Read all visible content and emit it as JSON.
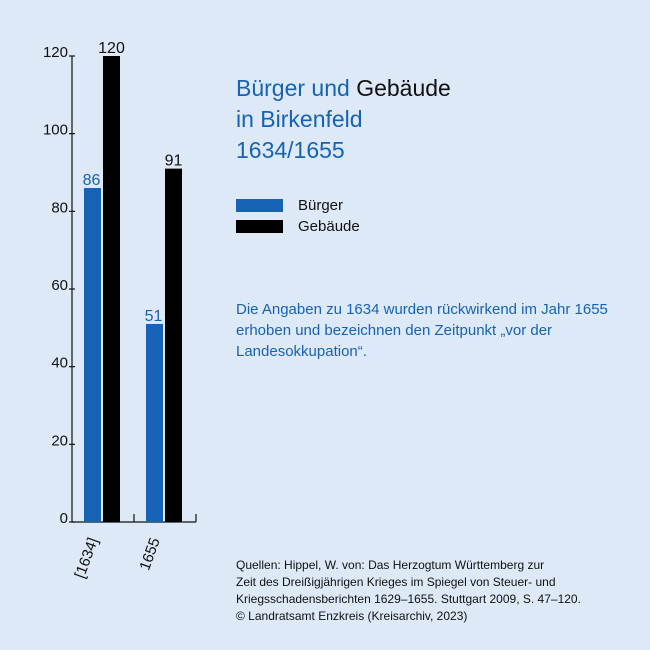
{
  "chart_data": {
    "type": "bar",
    "title": "Bürger und Gebäude in Birkenfeld 1634/1655",
    "categories": [
      "[1634]",
      "1655"
    ],
    "series": [
      {
        "name": "Bürger",
        "values": [
          86,
          51
        ],
        "color": "#1862b3"
      },
      {
        "name": "Gebäude",
        "values": [
          120,
          91
        ],
        "color": "#000000"
      }
    ],
    "ylim": [
      0,
      120
    ],
    "yticks": [
      0,
      20,
      40,
      60,
      80,
      100,
      120
    ],
    "xlabel": "",
    "ylabel": "",
    "grid": false,
    "legend": "right"
  },
  "title": {
    "part1": "Bürger und ",
    "part2": "Gebäude",
    "line2": "in Birkenfeld",
    "line3": "1634/1655"
  },
  "legend": {
    "items": [
      {
        "label": "Bürger",
        "color": "#1862b3"
      },
      {
        "label": "Gebäude",
        "color": "#000000"
      }
    ]
  },
  "note": "Die Angaben zu 1634 wurden rückwirkend im Jahr 1655 erhoben und bezeichnen den Zeitpunkt „vor der Landesokkupation“.",
  "sources": [
    "Quellen: Hippel, W. von: Das Herzogtum Württemberg zur",
    "Zeit des Dreißigjährigen Krieges im Spiegel von Steuer- und",
    "Kriegsschadensberichten 1629–1655. Stuttgart 2009, S. 47–120.",
    "© Landratsamt Enzkreis (Kreisarchiv, 2023)"
  ],
  "colors": {
    "background": "#dde9f6",
    "accent": "#1862b3",
    "dark": "#000000"
  }
}
